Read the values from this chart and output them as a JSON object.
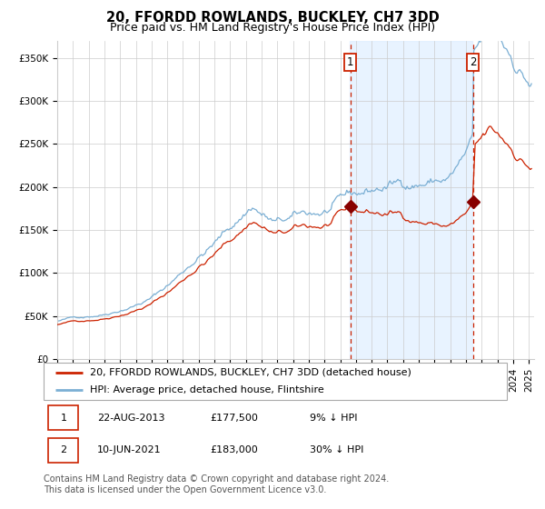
{
  "title": "20, FFORDD ROWLANDS, BUCKLEY, CH7 3DD",
  "subtitle": "Price paid vs. HM Land Registry's House Price Index (HPI)",
  "ylim": [
    0,
    370000
  ],
  "yticks": [
    0,
    50000,
    100000,
    150000,
    200000,
    250000,
    300000,
    350000
  ],
  "ytick_labels": [
    "£0",
    "£50K",
    "£100K",
    "£150K",
    "£200K",
    "£250K",
    "£300K",
    "£350K"
  ],
  "hpi_color": "#7bafd4",
  "price_color": "#cc2200",
  "marker_color": "#880000",
  "vline_color": "#cc2200",
  "bg_shade_color": "#ddeeff",
  "grid_color": "#cccccc",
  "sale1_price": 177500,
  "sale2_price": 183000,
  "legend_entry1": "20, FFORDD ROWLANDS, BUCKLEY, CH7 3DD (detached house)",
  "legend_entry2": "HPI: Average price, detached house, Flintshire",
  "footer1": "Contains HM Land Registry data © Crown copyright and database right 2024.",
  "footer2": "This data is licensed under the Open Government Licence v3.0.",
  "table_row1": [
    "1",
    "22-AUG-2013",
    "£177,500",
    "9% ↓ HPI"
  ],
  "table_row2": [
    "2",
    "10-JUN-2021",
    "£183,000",
    "30% ↓ HPI"
  ],
  "title_fontsize": 10.5,
  "subtitle_fontsize": 9,
  "tick_fontsize": 7.5,
  "legend_fontsize": 8,
  "footer_fontsize": 7,
  "table_fontsize": 8
}
